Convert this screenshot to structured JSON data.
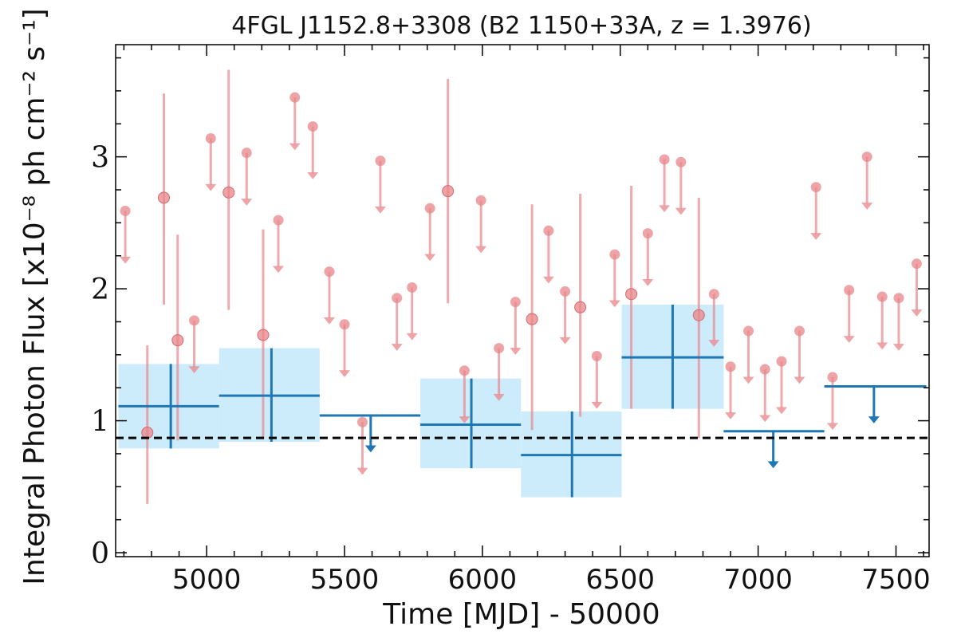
{
  "chart_data": {
    "type": "scatter",
    "title": "4FGL J1152.8+3308 (B2 1150+33A, z = 1.3976)",
    "xlabel": "Time [MJD] - 50000",
    "ylabel": "Integral Photon Flux [x10⁻⁸ ph cm⁻² s⁻¹]",
    "xlim": [
      4670,
      7620
    ],
    "ylim": [
      -0.03,
      3.85
    ],
    "x_ticks": [
      5000,
      5500,
      6000,
      6500,
      7000,
      7500
    ],
    "x_tick_labels": [
      "5000",
      "5500",
      "6000",
      "6500",
      "7000",
      "7500"
    ],
    "y_ticks": [
      0,
      1,
      2,
      3
    ],
    "y_tick_labels": [
      "0",
      "1",
      "2",
      "3"
    ],
    "grid": false,
    "reference_line": {
      "y": 0.87,
      "style": "dashed",
      "color": "#000000"
    },
    "colors": {
      "monthly": "#e8868a",
      "yearly": "#1f77b4",
      "yearly_band": "#cdecfb",
      "reference": "#000000"
    },
    "monthly_detections": [
      {
        "x": 4785,
        "y": 0.91,
        "lo": 0.37,
        "hi": 1.57
      },
      {
        "x": 4845,
        "y": 2.69,
        "lo": 1.88,
        "hi": 3.48
      },
      {
        "x": 4895,
        "y": 1.61,
        "lo": 0.85,
        "hi": 2.41
      },
      {
        "x": 5080,
        "y": 2.73,
        "lo": 1.84,
        "hi": 3.66
      },
      {
        "x": 5205,
        "y": 1.65,
        "lo": 0.86,
        "hi": 2.45
      },
      {
        "x": 5875,
        "y": 2.74,
        "lo": 1.89,
        "hi": 3.59
      },
      {
        "x": 6180,
        "y": 1.77,
        "lo": 0.93,
        "hi": 2.64
      },
      {
        "x": 6355,
        "y": 1.86,
        "lo": 1.03,
        "hi": 2.72
      },
      {
        "x": 6540,
        "y": 1.96,
        "lo": 1.09,
        "hi": 2.78
      },
      {
        "x": 6785,
        "y": 1.8,
        "lo": 0.87,
        "hi": 2.69
      }
    ],
    "monthly_upper_limits": [
      {
        "x": 4705,
        "y": 2.59
      },
      {
        "x": 4955,
        "y": 1.76
      },
      {
        "x": 5015,
        "y": 3.14
      },
      {
        "x": 5145,
        "y": 3.03
      },
      {
        "x": 5260,
        "y": 2.52
      },
      {
        "x": 5320,
        "y": 3.45
      },
      {
        "x": 5385,
        "y": 3.23
      },
      {
        "x": 5445,
        "y": 2.13
      },
      {
        "x": 5500,
        "y": 1.73
      },
      {
        "x": 5565,
        "y": 0.99
      },
      {
        "x": 5630,
        "y": 2.97
      },
      {
        "x": 5690,
        "y": 1.93
      },
      {
        "x": 5745,
        "y": 2.01
      },
      {
        "x": 5810,
        "y": 2.61
      },
      {
        "x": 5935,
        "y": 1.38
      },
      {
        "x": 5995,
        "y": 2.67
      },
      {
        "x": 6060,
        "y": 1.55
      },
      {
        "x": 6120,
        "y": 1.9
      },
      {
        "x": 6240,
        "y": 2.44
      },
      {
        "x": 6300,
        "y": 1.98
      },
      {
        "x": 6415,
        "y": 1.49
      },
      {
        "x": 6480,
        "y": 2.26
      },
      {
        "x": 6600,
        "y": 2.42
      },
      {
        "x": 6660,
        "y": 2.98
      },
      {
        "x": 6720,
        "y": 2.96
      },
      {
        "x": 6840,
        "y": 1.96
      },
      {
        "x": 6900,
        "y": 1.41
      },
      {
        "x": 6965,
        "y": 1.68
      },
      {
        "x": 7025,
        "y": 1.39
      },
      {
        "x": 7085,
        "y": 1.45
      },
      {
        "x": 7150,
        "y": 1.68
      },
      {
        "x": 7210,
        "y": 2.77
      },
      {
        "x": 7270,
        "y": 1.33
      },
      {
        "x": 7330,
        "y": 1.99
      },
      {
        "x": 7395,
        "y": 3.0
      },
      {
        "x": 7450,
        "y": 1.94
      },
      {
        "x": 7510,
        "y": 1.93
      },
      {
        "x": 7575,
        "y": 2.19
      }
    ],
    "yearly_detections": [
      {
        "x0": 4680,
        "x1": 5045,
        "xc": 4870,
        "y": 1.11,
        "lo": 0.79,
        "hi": 1.43
      },
      {
        "x0": 5045,
        "x1": 5410,
        "xc": 5235,
        "y": 1.19,
        "lo": 0.84,
        "hi": 1.55
      },
      {
        "x0": 5775,
        "x1": 6140,
        "xc": 5960,
        "y": 0.97,
        "lo": 0.64,
        "hi": 1.32
      },
      {
        "x0": 6140,
        "x1": 6505,
        "xc": 6325,
        "y": 0.74,
        "lo": 0.42,
        "hi": 1.07
      },
      {
        "x0": 6505,
        "x1": 6875,
        "xc": 6690,
        "y": 1.48,
        "lo": 1.09,
        "hi": 1.88
      }
    ],
    "yearly_upper_limits": [
      {
        "x0": 5410,
        "x1": 5775,
        "xc": 5595,
        "y": 1.04
      },
      {
        "x0": 6875,
        "x1": 7240,
        "xc": 7055,
        "y": 0.92
      },
      {
        "x0": 7240,
        "x1": 7610,
        "xc": 7420,
        "y": 1.26
      }
    ]
  }
}
